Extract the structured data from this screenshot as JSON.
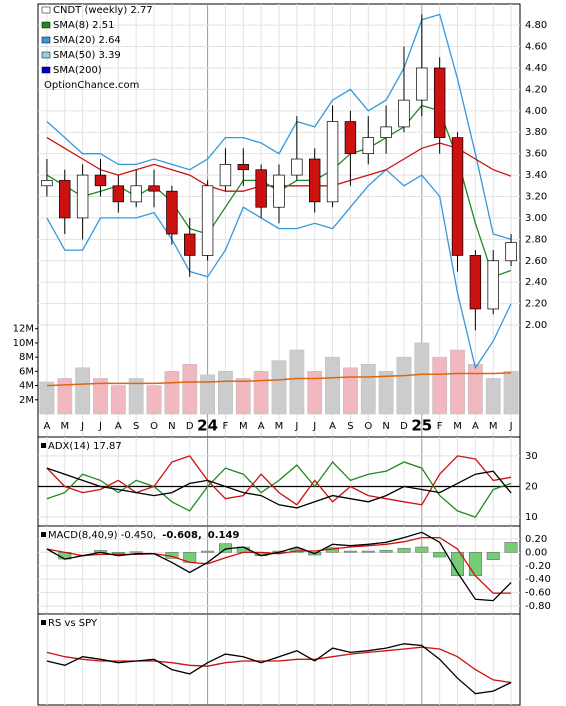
{
  "chart_data": [
    {
      "type": "candlestick",
      "legend": [
        {
          "label": "CNDT (weekly) 2.77",
          "color": "#ffffff"
        },
        {
          "label": "SMA(8) 2.51",
          "color": "#228822"
        },
        {
          "label": "SMA(20) 2.64",
          "color": "#3399dd"
        },
        {
          "label": "SMA(50) 3.39",
          "color": "#99ccee"
        },
        {
          "label": "SMA(200)",
          "color": "#0000cc"
        }
      ],
      "watermark": "OptionChance.com",
      "categories": [
        "A",
        "M",
        "J",
        "J",
        "A",
        "S",
        "O",
        "N",
        "D",
        "24",
        "F",
        "M",
        "A",
        "M",
        "J",
        "J",
        "A",
        "S",
        "O",
        "N",
        "D",
        "25",
        "F",
        "M",
        "A",
        "M",
        "J"
      ],
      "open": [
        3.3,
        3.35,
        3.0,
        3.4,
        3.3,
        3.15,
        3.3,
        3.25,
        2.85,
        2.65,
        3.3,
        3.5,
        3.45,
        3.1,
        3.4,
        3.55,
        3.15,
        3.9,
        3.6,
        3.75,
        3.85,
        4.1,
        4.4,
        3.75,
        2.65,
        2.15,
        2.6
      ],
      "high": [
        3.55,
        3.45,
        3.5,
        3.55,
        3.4,
        3.45,
        3.45,
        3.3,
        3.0,
        3.35,
        3.65,
        3.65,
        3.5,
        3.5,
        3.95,
        3.65,
        4.05,
        4.0,
        3.95,
        4.05,
        4.6,
        4.9,
        4.5,
        3.8,
        2.7,
        2.7,
        2.85
      ],
      "low": [
        3.2,
        2.85,
        2.8,
        3.2,
        3.05,
        3.1,
        3.1,
        2.75,
        2.45,
        2.6,
        3.25,
        3.3,
        3.0,
        2.95,
        3.35,
        3.05,
        3.1,
        3.3,
        3.5,
        3.6,
        3.8,
        3.95,
        3.6,
        2.5,
        1.95,
        2.1,
        2.55
      ],
      "close": [
        3.35,
        3.0,
        3.4,
        3.3,
        3.15,
        3.3,
        3.25,
        2.85,
        2.65,
        3.3,
        3.5,
        3.45,
        3.1,
        3.4,
        3.55,
        3.15,
        3.9,
        3.6,
        3.75,
        3.85,
        4.1,
        4.4,
        3.75,
        2.65,
        2.15,
        2.6,
        2.77
      ],
      "up_color": "#ffffff",
      "down_color": "#cc1111",
      "lines": [
        {
          "color": "#3399dd",
          "values": [
            3.9,
            3.75,
            3.6,
            3.6,
            3.5,
            3.5,
            3.55,
            3.5,
            3.45,
            3.55,
            3.75,
            3.75,
            3.7,
            3.6,
            3.9,
            3.85,
            4.1,
            4.2,
            4.0,
            4.1,
            4.4,
            4.85,
            4.9,
            4.3,
            3.6,
            2.85,
            2.8
          ]
        },
        {
          "color": "#3399dd",
          "values": [
            3.0,
            2.7,
            2.7,
            3.0,
            3.0,
            3.0,
            3.05,
            2.8,
            2.5,
            2.45,
            2.7,
            3.1,
            3.0,
            2.9,
            2.9,
            2.95,
            2.9,
            3.1,
            3.3,
            3.45,
            3.3,
            3.4,
            3.2,
            2.3,
            1.6,
            1.85,
            2.2
          ]
        },
        {
          "color": "#cc1111",
          "values": [
            3.75,
            3.65,
            3.55,
            3.45,
            3.4,
            3.45,
            3.5,
            3.45,
            3.4,
            3.3,
            3.25,
            3.25,
            3.3,
            3.3,
            3.3,
            3.3,
            3.3,
            3.35,
            3.4,
            3.45,
            3.55,
            3.65,
            3.7,
            3.65,
            3.55,
            3.45,
            3.39
          ]
        },
        {
          "color": "#228822",
          "values": [
            3.4,
            3.3,
            3.2,
            3.25,
            3.3,
            3.2,
            3.3,
            3.15,
            2.9,
            2.85,
            3.1,
            3.35,
            3.35,
            3.25,
            3.35,
            3.35,
            3.45,
            3.6,
            3.65,
            3.75,
            3.85,
            4.05,
            4.0,
            3.55,
            2.95,
            2.45,
            2.51
          ]
        }
      ],
      "ylim": [
        1.16,
        4.96
      ],
      "yticks": [
        {
          "value": 2.0,
          "label": "2.00"
        },
        {
          "value": 2.2,
          "label": "2.20"
        },
        {
          "value": 2.4,
          "label": "2.40"
        },
        {
          "value": 2.6,
          "label": "2.60"
        },
        {
          "value": 2.8,
          "label": "2.80"
        },
        {
          "value": 3.0,
          "label": "3.00"
        },
        {
          "value": 3.2,
          "label": "3.20"
        },
        {
          "value": 3.4,
          "label": "3.40"
        },
        {
          "value": 3.6,
          "label": "3.60"
        },
        {
          "value": 3.8,
          "label": "3.80"
        },
        {
          "value": 4.0,
          "label": "4.00"
        },
        {
          "value": 4.2,
          "label": "4.20"
        },
        {
          "value": 4.4,
          "label": "4.40"
        },
        {
          "value": 4.6,
          "label": "4.60"
        },
        {
          "value": 4.8,
          "label": "4.80"
        }
      ],
      "volume": {
        "values": [
          4.5,
          5,
          6.5,
          5,
          4,
          5,
          4,
          6,
          7,
          5.5,
          6,
          5,
          6,
          7.5,
          9,
          6,
          8,
          6.5,
          7,
          6,
          8,
          10,
          8,
          9,
          7,
          5,
          6
        ],
        "avg": [
          4.0,
          4.1,
          4.2,
          4.3,
          4.3,
          4.3,
          4.3,
          4.4,
          4.5,
          4.5,
          4.6,
          4.6,
          4.7,
          4.8,
          5.0,
          5.0,
          5.1,
          5.2,
          5.2,
          5.3,
          5.4,
          5.6,
          5.6,
          5.7,
          5.7,
          5.7,
          5.8
        ],
        "avg_color": "#dd6611",
        "up_color": "#cccccc",
        "down_color": "#f2b8c0",
        "ylim": [
          0,
          12.1
        ],
        "yticks": [
          {
            "value": 2,
            "label": "2M"
          },
          {
            "value": 4,
            "label": "4M"
          },
          {
            "value": 6,
            "label": "6M"
          },
          {
            "value": 8,
            "label": "8M"
          },
          {
            "value": 10,
            "label": "10M"
          },
          {
            "value": 12,
            "label": "12M"
          }
        ]
      }
    },
    {
      "type": "line",
      "title": "ADX(14) 17.87",
      "reference": 20,
      "series": [
        {
          "color": "#228822",
          "values": [
            16,
            18,
            24,
            22,
            18,
            22,
            20,
            15,
            12,
            20,
            26,
            24,
            18,
            22,
            27,
            20,
            28,
            22,
            24,
            25,
            28,
            26,
            17,
            12,
            10,
            19,
            21
          ]
        },
        {
          "color": "#cc1111",
          "values": [
            26,
            20,
            18,
            19,
            22,
            18,
            20,
            28,
            30,
            22,
            16,
            17,
            24,
            18,
            14,
            22,
            15,
            20,
            17,
            16,
            15,
            14,
            24,
            30,
            29,
            22,
            23
          ]
        },
        {
          "color": "#000000",
          "values": [
            26,
            24,
            22,
            20,
            19,
            18,
            17,
            18,
            21,
            22,
            20,
            18,
            17,
            14,
            13,
            15,
            17,
            16,
            15,
            17,
            20,
            19,
            18,
            21,
            24,
            25,
            17.87
          ]
        }
      ],
      "ylim": [
        7.4,
        35.2
      ],
      "yticks": [
        10,
        20,
        30
      ]
    },
    {
      "type": "line",
      "title_parts": [
        {
          "text": "MACD(8,40,9) -0.450,",
          "color": "#000000"
        },
        {
          "text": "-0.608,",
          "color": "#dd0000"
        },
        {
          "text": "0.149",
          "color": "#2255cc"
        }
      ],
      "histogram": {
        "color": "#77cc77",
        "values": [
          0.0,
          -0.1,
          0.0,
          0.03,
          -0.02,
          0.01,
          0.0,
          -0.09,
          -0.15,
          0.02,
          0.13,
          0.08,
          -0.05,
          0.02,
          0.06,
          -0.04,
          0.07,
          0.02,
          0.02,
          0.03,
          0.06,
          0.08,
          -0.07,
          -0.35,
          -0.35,
          -0.11,
          0.149
        ]
      },
      "series": [
        {
          "color": "#cc1111",
          "values": [
            0.05,
            0.0,
            -0.05,
            -0.03,
            -0.03,
            -0.03,
            -0.02,
            -0.06,
            -0.15,
            -0.17,
            -0.08,
            0.0,
            0.0,
            -0.02,
            0.02,
            0.02,
            0.05,
            0.08,
            0.1,
            0.12,
            0.16,
            0.22,
            0.22,
            0.05,
            -0.35,
            -0.61,
            -0.608
          ]
        },
        {
          "color": "#000000",
          "values": [
            0.05,
            -0.1,
            -0.05,
            0.0,
            -0.05,
            -0.02,
            -0.02,
            -0.15,
            -0.3,
            -0.15,
            0.05,
            0.08,
            -0.05,
            0.0,
            0.08,
            -0.02,
            0.12,
            0.1,
            0.12,
            0.15,
            0.22,
            0.3,
            0.15,
            -0.3,
            -0.7,
            -0.72,
            -0.45
          ]
        }
      ],
      "ylim": [
        -0.89,
        0.334
      ],
      "yticks": [
        {
          "value": 0.2,
          "label": "0.20"
        },
        {
          "value": 0.0,
          "label": "0.00"
        },
        {
          "value": -0.2,
          "label": "-0.20"
        },
        {
          "value": -0.4,
          "label": "-0.40"
        },
        {
          "value": -0.6,
          "label": "-0.60"
        },
        {
          "value": -0.8,
          "label": "-0.80"
        }
      ]
    },
    {
      "type": "line",
      "title": "RS vs SPY",
      "series": [
        {
          "color": "#cc1111",
          "values": [
            60,
            55,
            52,
            50,
            50,
            50,
            50,
            48,
            45,
            44,
            48,
            50,
            50,
            50,
            52,
            52,
            55,
            58,
            60,
            62,
            64,
            66,
            64,
            55,
            40,
            28,
            25
          ]
        },
        {
          "color": "#000000",
          "values": [
            50,
            45,
            55,
            52,
            48,
            50,
            52,
            40,
            35,
            48,
            58,
            55,
            48,
            55,
            62,
            50,
            65,
            60,
            62,
            65,
            70,
            68,
            52,
            30,
            12,
            15,
            25
          ]
        }
      ],
      "ylim": [
        0,
        100
      ]
    }
  ]
}
